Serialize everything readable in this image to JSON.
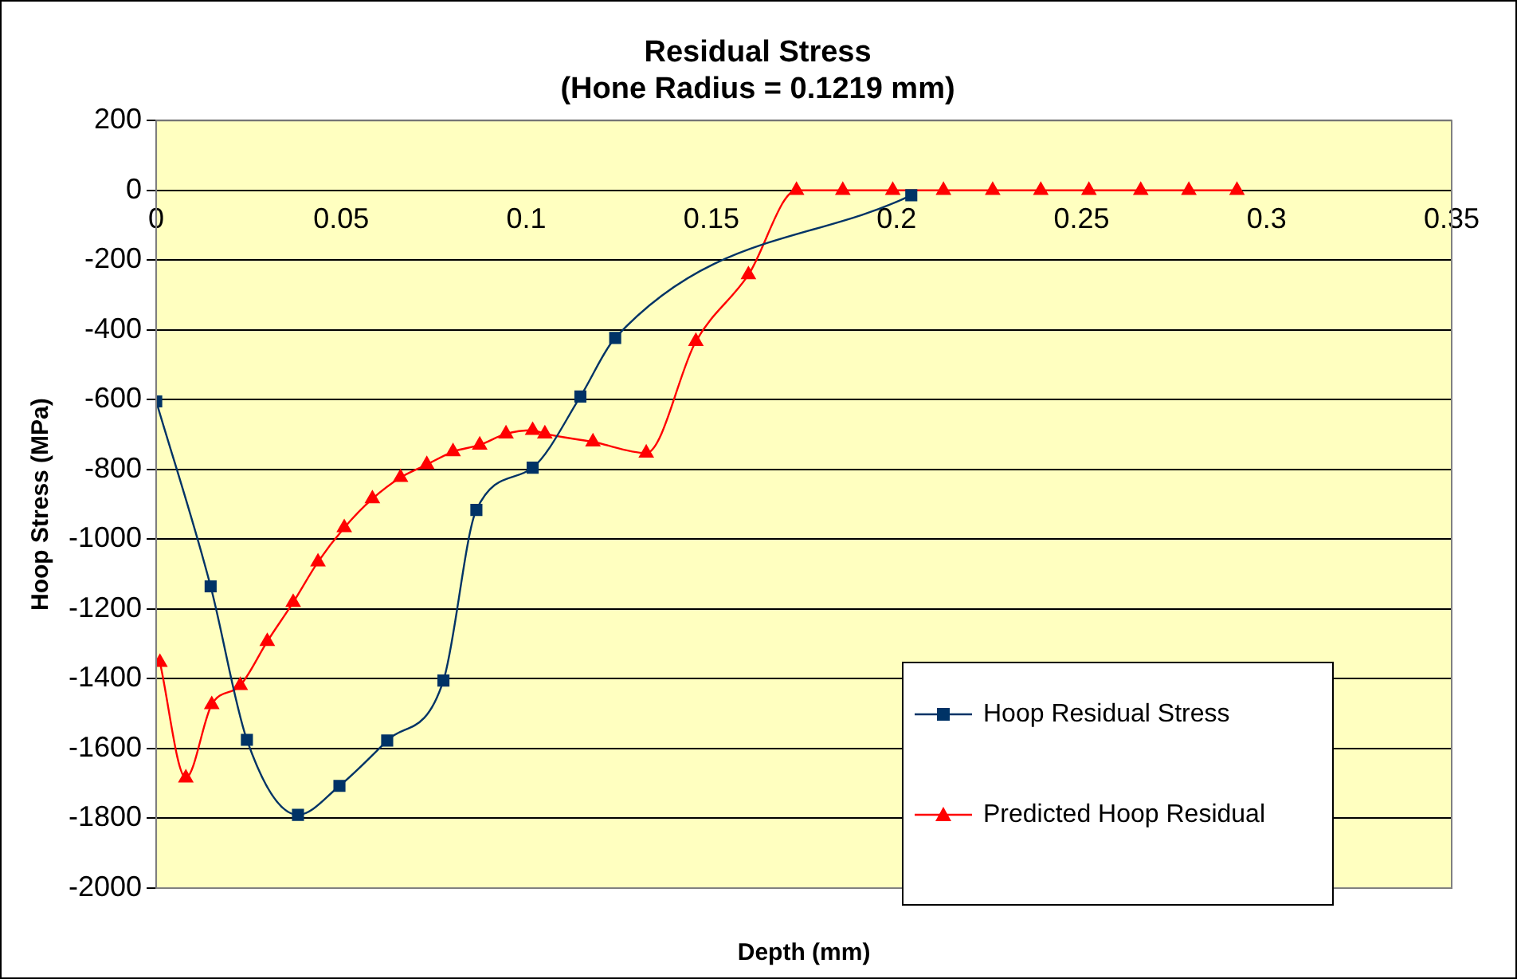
{
  "chart_data": {
    "type": "line",
    "title": "Residual Stress",
    "subtitle": "(Hone Radius = 0.1219 mm)",
    "xlabel": "Depth (mm)",
    "ylabel": "Hoop Stress (MPa)",
    "xlim": [
      0,
      0.35
    ],
    "xticks": [
      0,
      0.05,
      0.1,
      0.15,
      0.2,
      0.25,
      0.3,
      0.35
    ],
    "ylim": [
      -2000,
      200
    ],
    "yticks": [
      -2000,
      -1800,
      -1600,
      -1400,
      -1200,
      -1000,
      -800,
      -600,
      -400,
      -200,
      0,
      200
    ],
    "grid": "y",
    "legend": "bottom right",
    "series": [
      {
        "name": "Hoop Residual Stress",
        "color": "#003366",
        "marker": "square",
        "x": [
          0,
          0.0147,
          0.0245,
          0.0383,
          0.0495,
          0.0624,
          0.0776,
          0.0865,
          0.1017,
          0.1146,
          0.124,
          0.204
        ],
        "values": [
          -605,
          -1135,
          -1575,
          -1790,
          -1707,
          -1577,
          -1405,
          -916,
          -795,
          -591,
          -423,
          -14
        ]
      },
      {
        "name": "Predicted Hoop Residual",
        "color": "#ff0000",
        "marker": "triangle",
        "x": [
          0.001,
          0.008,
          0.015,
          0.0227,
          0.03,
          0.037,
          0.0437,
          0.0508,
          0.0584,
          0.066,
          0.0731,
          0.0802,
          0.0874,
          0.0945,
          0.1017,
          0.105,
          0.118,
          0.1324,
          0.1458,
          0.16,
          0.173,
          0.1855,
          0.199,
          0.2127,
          0.226,
          0.239,
          0.252,
          0.266,
          0.279,
          0.292
        ],
        "values": [
          -1353,
          -1684,
          -1474,
          -1419,
          -1293,
          -1181,
          -1065,
          -967,
          -884,
          -823,
          -786,
          -749,
          -730,
          -698,
          -688,
          -698,
          -721,
          -753,
          -433,
          -242,
          0,
          0,
          0,
          0,
          0,
          0,
          0,
          0,
          0,
          0
        ]
      }
    ]
  }
}
